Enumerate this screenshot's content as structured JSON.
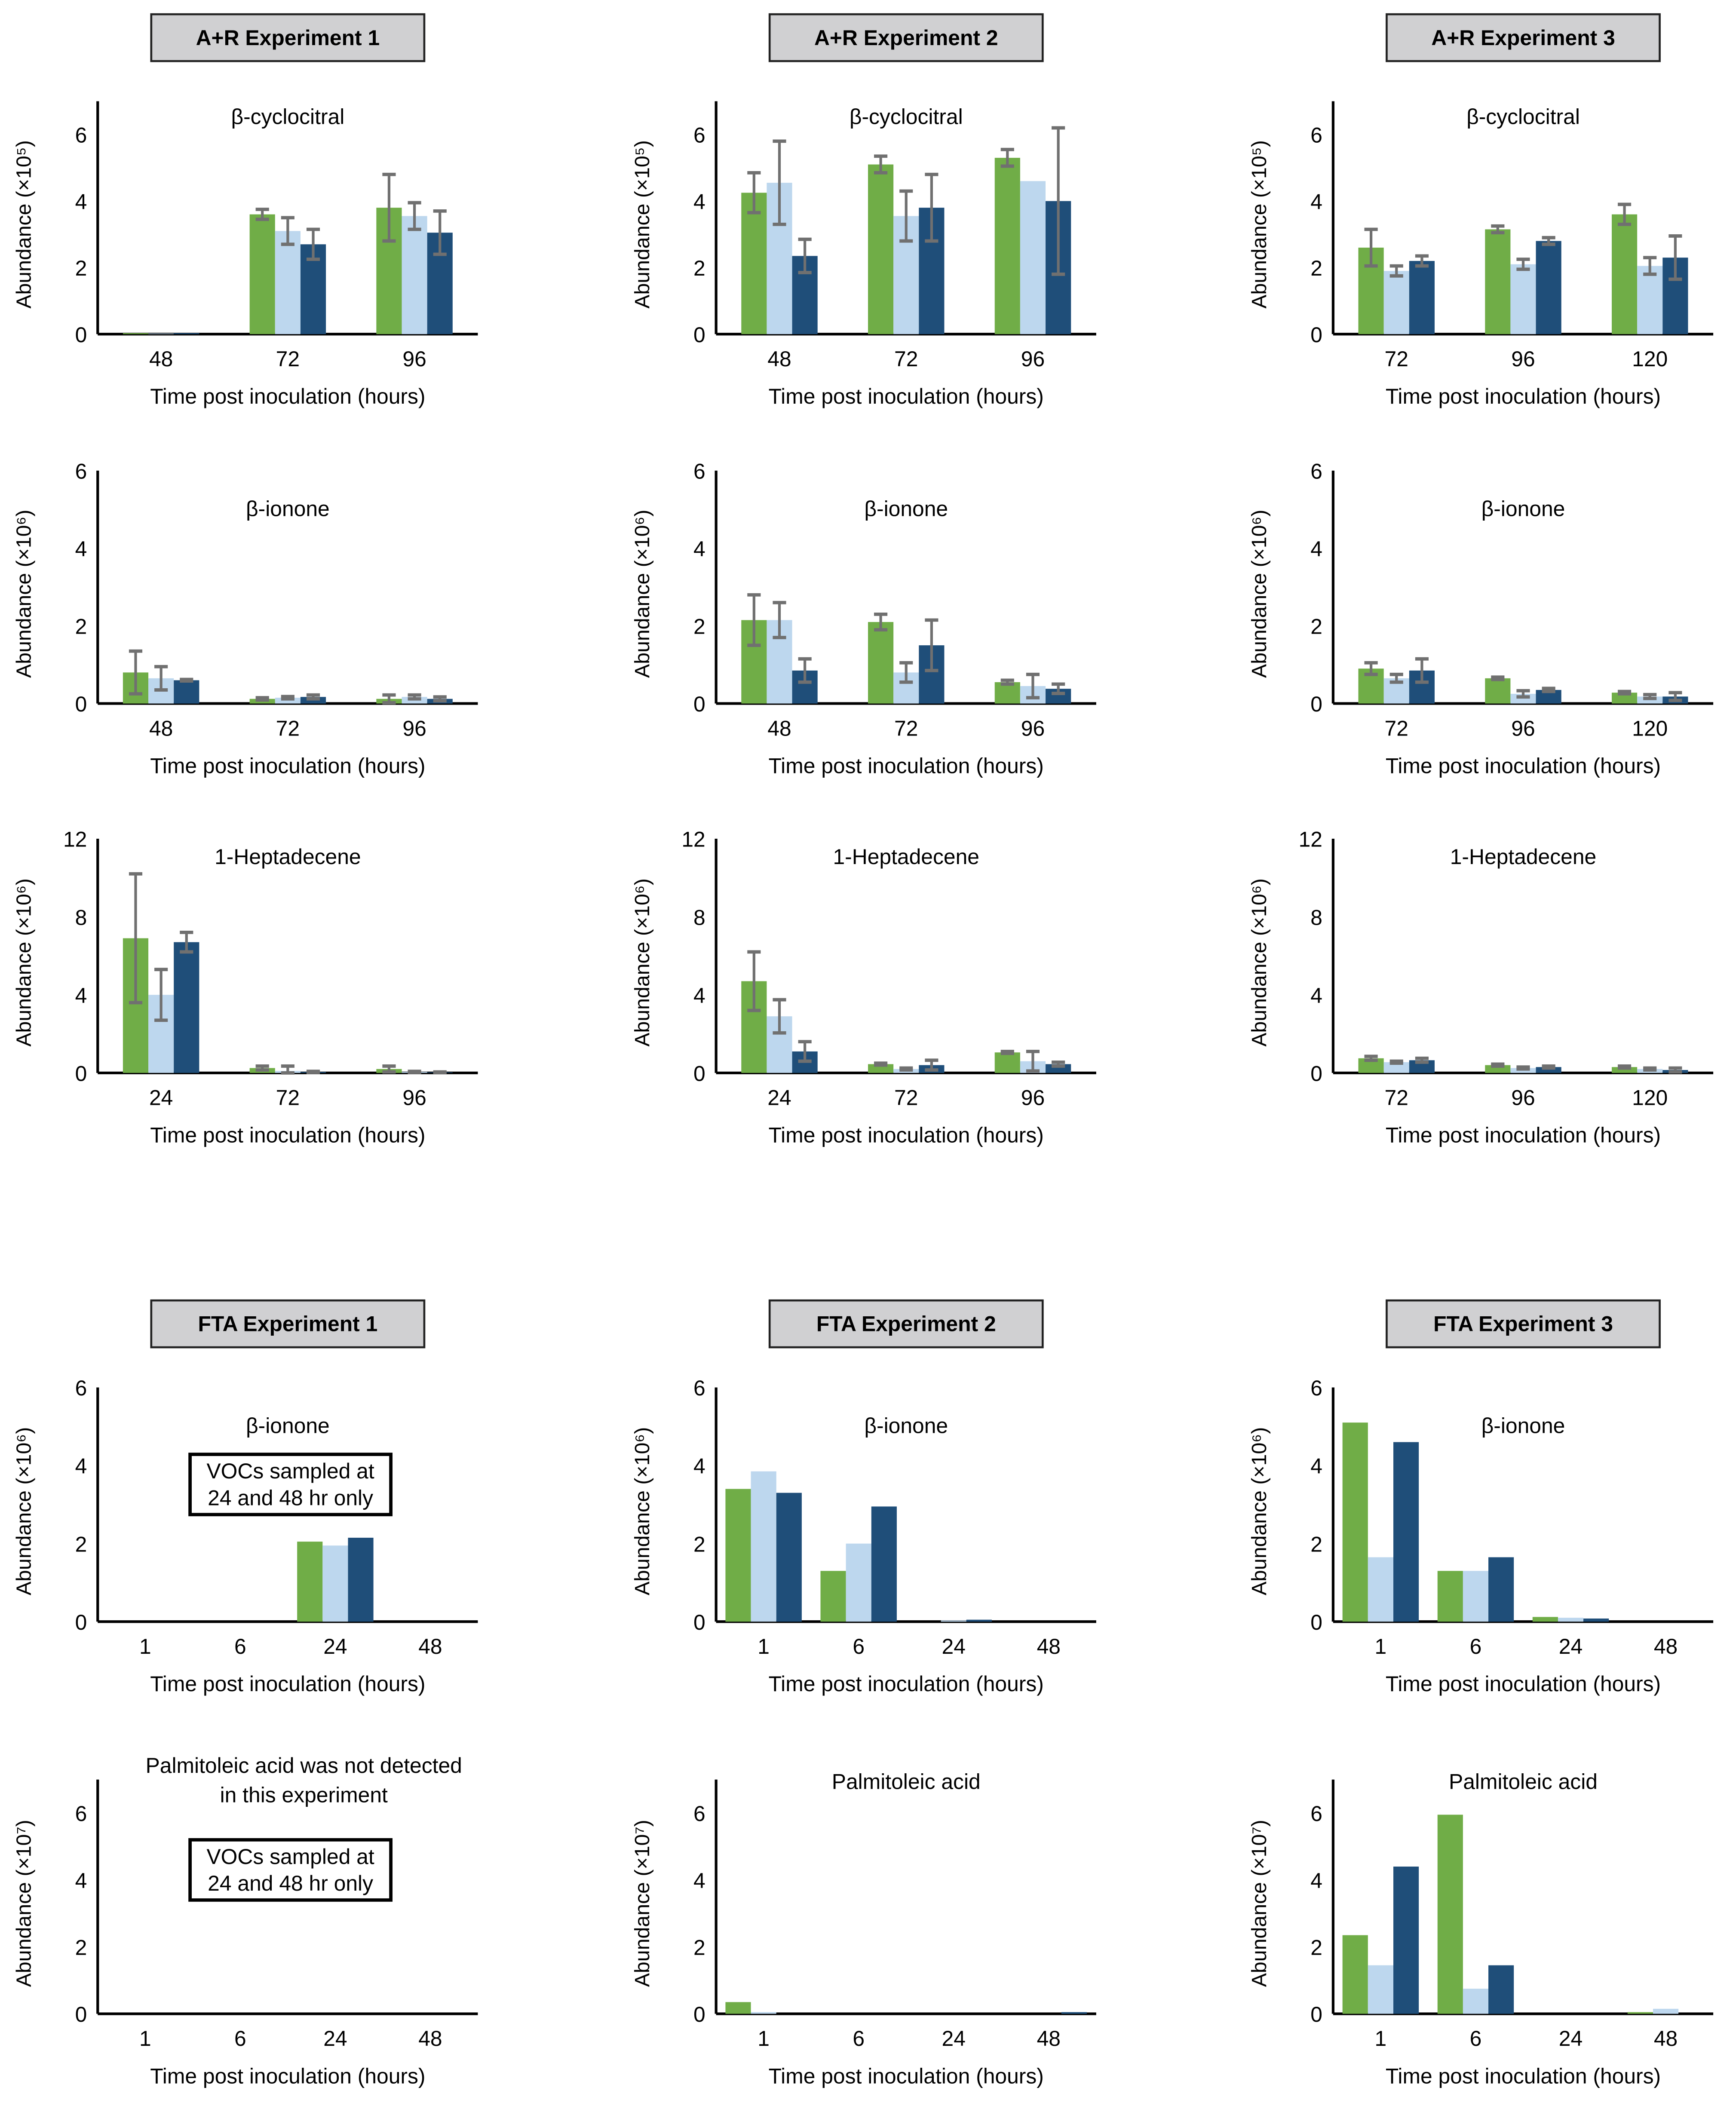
{
  "colors": {
    "series1": "#70ad47",
    "series2": "#bdd7ee",
    "series3": "#1f4e79",
    "error": "#707070",
    "header_bg": "#d0d0d2"
  },
  "section_headers": [
    "A+R Experiment 1",
    "A+R Experiment 2",
    "A+R Experiment 3",
    "FTA Experiment 1",
    "FTA Experiment 2",
    "FTA Experiment 3"
  ],
  "xlabel": "Time post inoculation (hours)",
  "chart_data": [
    {
      "type": "bar",
      "experiment": "A+R Experiment 1",
      "title": "β-cyclocitral",
      "ylabel": "Abundance (×10⁵)",
      "ylim": [
        0,
        7
      ],
      "yticks": [
        "0",
        "2",
        "4",
        "6"
      ],
      "categories": [
        "48",
        "72",
        "96"
      ],
      "series": [
        {
          "values": [
            0.03,
            3.6,
            3.8
          ],
          "errors": [
            0,
            0.15,
            1.0
          ]
        },
        {
          "values": [
            0.02,
            3.1,
            3.55
          ],
          "errors": [
            0,
            0.4,
            0.4
          ]
        },
        {
          "values": [
            0.03,
            2.7,
            3.05
          ],
          "errors": [
            0,
            0.45,
            0.65
          ]
        }
      ]
    },
    {
      "type": "bar",
      "experiment": "A+R Experiment 2",
      "title": "β-cyclocitral",
      "ylabel": "Abundance (×10⁵)",
      "ylim": [
        0,
        7
      ],
      "yticks": [
        "0",
        "2",
        "4",
        "6"
      ],
      "categories": [
        "48",
        "72",
        "96"
      ],
      "series": [
        {
          "values": [
            4.25,
            5.1,
            5.3
          ],
          "errors": [
            0.6,
            0.25,
            0.25
          ]
        },
        {
          "values": [
            4.55,
            3.55,
            4.6
          ],
          "errors": [
            1.25,
            0.75,
            0
          ]
        },
        {
          "values": [
            2.35,
            3.8,
            4.0
          ],
          "errors": [
            0.5,
            1.0,
            2.2
          ]
        }
      ]
    },
    {
      "type": "bar",
      "experiment": "A+R Experiment 3",
      "title": "β-cyclocitral",
      "ylabel": "Abundance (×10⁵)",
      "ylim": [
        0,
        7
      ],
      "yticks": [
        "0",
        "2",
        "4",
        "6"
      ],
      "categories": [
        "72",
        "96",
        "120"
      ],
      "series": [
        {
          "values": [
            2.6,
            3.15,
            3.6
          ],
          "errors": [
            0.55,
            0.1,
            0.3
          ]
        },
        {
          "values": [
            1.9,
            2.1,
            2.05
          ],
          "errors": [
            0.15,
            0.15,
            0.25
          ]
        },
        {
          "values": [
            2.2,
            2.8,
            2.3
          ],
          "errors": [
            0.15,
            0.1,
            0.65
          ]
        }
      ]
    },
    {
      "type": "bar",
      "experiment": "A+R Experiment 1",
      "title": "β-ionone",
      "ylabel": "Abundance (×10⁶)",
      "ylim": [
        0,
        6
      ],
      "yticks": [
        "0",
        "2",
        "4",
        "6"
      ],
      "categories": [
        "48",
        "72",
        "96"
      ],
      "series": [
        {
          "values": [
            0.8,
            0.12,
            0.12
          ],
          "errors": [
            0.55,
            0.03,
            0.1
          ]
        },
        {
          "values": [
            0.65,
            0.15,
            0.17
          ],
          "errors": [
            0.3,
            0.03,
            0.05
          ]
        },
        {
          "values": [
            0.6,
            0.17,
            0.12
          ],
          "errors": [
            0.02,
            0.05,
            0.05
          ]
        }
      ]
    },
    {
      "type": "bar",
      "experiment": "A+R Experiment 2",
      "title": "β-ionone",
      "ylabel": "Abundance (×10⁶)",
      "ylim": [
        0,
        6
      ],
      "yticks": [
        "0",
        "2",
        "4",
        "6"
      ],
      "categories": [
        "48",
        "72",
        "96"
      ],
      "series": [
        {
          "values": [
            2.15,
            2.1,
            0.55
          ],
          "errors": [
            0.65,
            0.2,
            0.05
          ]
        },
        {
          "values": [
            2.15,
            0.8,
            0.45
          ],
          "errors": [
            0.45,
            0.25,
            0.3
          ]
        },
        {
          "values": [
            0.85,
            1.5,
            0.38
          ],
          "errors": [
            0.3,
            0.65,
            0.12
          ]
        }
      ]
    },
    {
      "type": "bar",
      "experiment": "A+R Experiment 3",
      "title": "β-ionone",
      "ylabel": "Abundance (×10⁶)",
      "ylim": [
        0,
        6
      ],
      "yticks": [
        "0",
        "2",
        "4",
        "6"
      ],
      "categories": [
        "72",
        "96",
        "120"
      ],
      "series": [
        {
          "values": [
            0.9,
            0.65,
            0.28
          ],
          "errors": [
            0.15,
            0.03,
            0.03
          ]
        },
        {
          "values": [
            0.65,
            0.25,
            0.18
          ],
          "errors": [
            0.1,
            0.08,
            0.05
          ]
        },
        {
          "values": [
            0.85,
            0.35,
            0.18
          ],
          "errors": [
            0.3,
            0.04,
            0.1
          ]
        }
      ]
    },
    {
      "type": "bar",
      "experiment": "A+R Experiment 1",
      "title": "1-Heptadecene",
      "ylabel": "Abundance (×10⁶)",
      "ylim": [
        0,
        12
      ],
      "yticks": [
        "0",
        "4",
        "8",
        "12"
      ],
      "categories": [
        "24",
        "72",
        "96"
      ],
      "series": [
        {
          "values": [
            6.9,
            0.25,
            0.2
          ],
          "errors": [
            3.3,
            0.1,
            0.15
          ]
        },
        {
          "values": [
            4.0,
            0.1,
            0.05
          ],
          "errors": [
            1.3,
            0.25,
            0.03
          ]
        },
        {
          "values": [
            6.7,
            0.05,
            0.03
          ],
          "errors": [
            0.5,
            0.03,
            0.02
          ]
        }
      ]
    },
    {
      "type": "bar",
      "experiment": "A+R Experiment 2",
      "title": "1-Heptadecene",
      "ylabel": "Abundance (×10⁶)",
      "ylim": [
        0,
        12
      ],
      "yticks": [
        "0",
        "4",
        "8",
        "12"
      ],
      "categories": [
        "24",
        "72",
        "96"
      ],
      "series": [
        {
          "values": [
            4.7,
            0.45,
            1.05
          ],
          "errors": [
            1.5,
            0.05,
            0.05
          ]
        },
        {
          "values": [
            2.9,
            0.2,
            0.6
          ],
          "errors": [
            0.85,
            0.05,
            0.5
          ]
        },
        {
          "values": [
            1.1,
            0.4,
            0.45
          ],
          "errors": [
            0.5,
            0.25,
            0.1
          ]
        }
      ]
    },
    {
      "type": "bar",
      "experiment": "A+R Experiment 3",
      "title": "1-Heptadecene",
      "ylabel": "Abundance (×10⁶)",
      "ylim": [
        0,
        12
      ],
      "yticks": [
        "0",
        "4",
        "8",
        "12"
      ],
      "categories": [
        "72",
        "96",
        "120"
      ],
      "series": [
        {
          "values": [
            0.75,
            0.4,
            0.3
          ],
          "errors": [
            0.1,
            0.05,
            0.05
          ]
        },
        {
          "values": [
            0.55,
            0.25,
            0.2
          ],
          "errors": [
            0.05,
            0.05,
            0.05
          ]
        },
        {
          "values": [
            0.65,
            0.3,
            0.15
          ],
          "errors": [
            0.1,
            0.05,
            0.1
          ]
        }
      ]
    },
    {
      "type": "bar",
      "experiment": "FTA Experiment 1",
      "title": "β-ionone",
      "ylabel": "Abundance (×10⁶)",
      "ylim": [
        0,
        6
      ],
      "yticks": [
        "0",
        "2",
        "4",
        "6"
      ],
      "categories": [
        "1",
        "6",
        "24",
        "48"
      ],
      "note": [
        "VOCs sampled at",
        "24 and 48 hr only"
      ],
      "series": [
        {
          "values": [
            0,
            0,
            2.05,
            0
          ]
        },
        {
          "values": [
            0,
            0,
            1.95,
            0
          ]
        },
        {
          "values": [
            0,
            0,
            2.15,
            0
          ]
        }
      ]
    },
    {
      "type": "bar",
      "experiment": "FTA Experiment 2",
      "title": "β-ionone",
      "ylabel": "Abundance (×10⁶)",
      "ylim": [
        0,
        6
      ],
      "yticks": [
        "0",
        "2",
        "4",
        "6"
      ],
      "categories": [
        "1",
        "6",
        "24",
        "48"
      ],
      "series": [
        {
          "values": [
            3.4,
            1.3,
            0,
            0
          ]
        },
        {
          "values": [
            3.85,
            2.0,
            0.03,
            0
          ]
        },
        {
          "values": [
            3.3,
            2.95,
            0.05,
            0
          ]
        }
      ]
    },
    {
      "type": "bar",
      "experiment": "FTA Experiment 3",
      "title": "β-ionone",
      "ylabel": "Abundance (×10⁶)",
      "ylim": [
        0,
        6
      ],
      "yticks": [
        "0",
        "2",
        "4",
        "6"
      ],
      "categories": [
        "1",
        "6",
        "24",
        "48"
      ],
      "series": [
        {
          "values": [
            5.1,
            1.3,
            0.12,
            0
          ]
        },
        {
          "values": [
            1.65,
            1.3,
            0.1,
            0
          ]
        },
        {
          "values": [
            4.6,
            1.65,
            0.08,
            0
          ]
        }
      ]
    },
    {
      "type": "bar",
      "experiment": "FTA Experiment 1",
      "title": [
        "Palmitoleic acid was not detected",
        "in this experiment"
      ],
      "ylabel": "Abundance (×10⁷)",
      "ylim": [
        0,
        7
      ],
      "yticks": [
        "0",
        "2",
        "4",
        "6"
      ],
      "categories": [
        "1",
        "6",
        "24",
        "48"
      ],
      "note": [
        "VOCs sampled at",
        "24 and 48 hr only"
      ],
      "series": [
        {
          "values": [
            0,
            0,
            0,
            0
          ]
        },
        {
          "values": [
            0,
            0,
            0,
            0
          ]
        },
        {
          "values": [
            0,
            0,
            0,
            0
          ]
        }
      ]
    },
    {
      "type": "bar",
      "experiment": "FTA Experiment 2",
      "title": "Palmitoleic acid",
      "ylabel": "Abundance (×10⁷)",
      "ylim": [
        0,
        7
      ],
      "yticks": [
        "0",
        "2",
        "4",
        "6"
      ],
      "categories": [
        "1",
        "6",
        "24",
        "48"
      ],
      "series": [
        {
          "values": [
            0.35,
            0,
            0,
            0
          ]
        },
        {
          "values": [
            0.05,
            0,
            0,
            0
          ]
        },
        {
          "values": [
            0,
            0,
            0,
            0.05
          ]
        }
      ]
    },
    {
      "type": "bar",
      "experiment": "FTA Experiment 3",
      "title": "Palmitoleic acid",
      "ylabel": "Abundance (×10⁷)",
      "ylim": [
        0,
        7
      ],
      "yticks": [
        "0",
        "2",
        "4",
        "6"
      ],
      "categories": [
        "1",
        "6",
        "24",
        "48"
      ],
      "series": [
        {
          "values": [
            2.35,
            5.95,
            0,
            0.05
          ]
        },
        {
          "values": [
            1.45,
            0.75,
            0,
            0.15
          ]
        },
        {
          "values": [
            4.4,
            1.45,
            0,
            0
          ]
        }
      ]
    }
  ]
}
